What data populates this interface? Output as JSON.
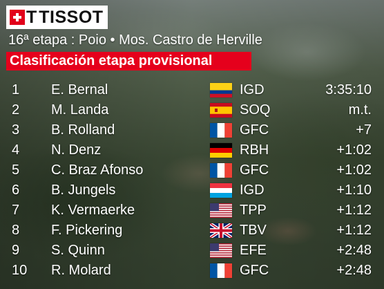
{
  "brand": {
    "cross": "T",
    "name": "TISSOT"
  },
  "stage_title": "16ª etapa : Poio • Mos. Castro de Herville",
  "classification_label": "Clasificación etapa provisional",
  "colors": {
    "accent_red": "#e5001c",
    "text": "#ffffff"
  },
  "riders": [
    {
      "pos": "1",
      "name": "E. Bernal",
      "flag": "colombia-flag",
      "team": "IGD",
      "time": "3:35:10"
    },
    {
      "pos": "2",
      "name": "M. Landa",
      "flag": "spain-flag",
      "team": "SOQ",
      "time": "m.t."
    },
    {
      "pos": "3",
      "name": "B. Rolland",
      "flag": "france-flag",
      "team": "GFC",
      "time": "+7"
    },
    {
      "pos": "4",
      "name": "N. Denz",
      "flag": "germany-flag",
      "team": "RBH",
      "time": "+1:02"
    },
    {
      "pos": "5",
      "name": "C. Braz Afonso",
      "flag": "france-flag",
      "team": "GFC",
      "time": "+1:02"
    },
    {
      "pos": "6",
      "name": "B. Jungels",
      "flag": "luxembourg-flag",
      "team": "IGD",
      "time": "+1:10"
    },
    {
      "pos": "7",
      "name": "K. Vermaerke",
      "flag": "usa-flag",
      "team": "TPP",
      "time": "+1:12"
    },
    {
      "pos": "8",
      "name": "F. Pickering",
      "flag": "united-kingdom-flag",
      "team": "TBV",
      "time": "+1:12"
    },
    {
      "pos": "9",
      "name": "S. Quinn",
      "flag": "usa-flag",
      "team": "EFE",
      "time": "+2:48"
    },
    {
      "pos": "10",
      "name": "R. Molard",
      "flag": "france-flag",
      "team": "GFC",
      "time": "+2:48"
    }
  ]
}
